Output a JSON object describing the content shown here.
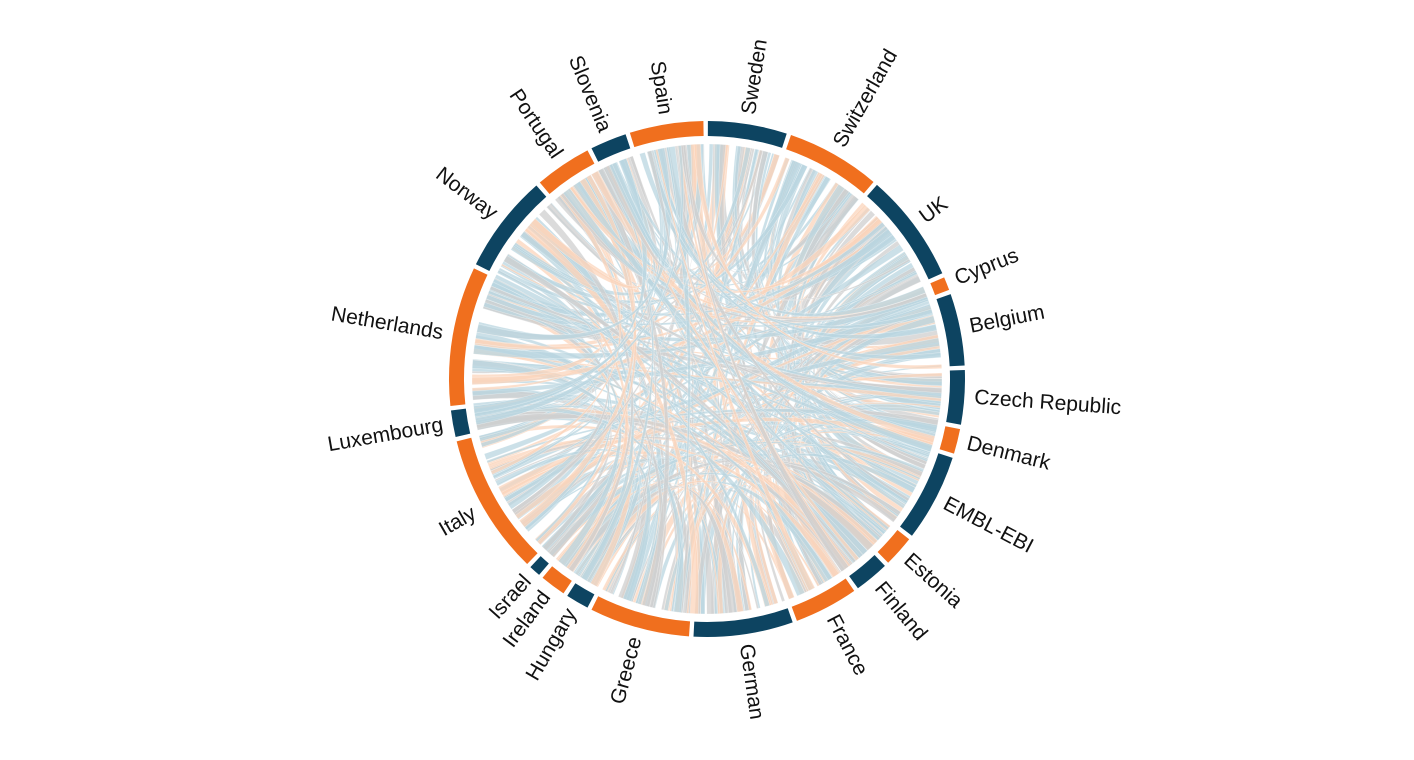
{
  "colors": {
    "orange": "#f06f1e",
    "navy": "#0d4461",
    "ribbon_blue": "#b9d6e0",
    "ribbon_peach": "#fbd4bb",
    "ribbon_grey": "#cfcfcf"
  },
  "chart_data": {
    "type": "chord",
    "segments": [
      {
        "label": "Sweden",
        "start": 0.2,
        "end": 18.0,
        "color": "navy"
      },
      {
        "label": "Switzerland",
        "start": 19.0,
        "end": 40.2,
        "color": "orange"
      },
      {
        "label": "UK",
        "start": 41.2,
        "end": 65.8,
        "color": "navy"
      },
      {
        "label": "Cyprus",
        "start": 66.8,
        "end": 69.8,
        "color": "orange"
      },
      {
        "label": "Belgium",
        "start": 70.8,
        "end": 87.0,
        "color": "navy"
      },
      {
        "label": "Czech Republic",
        "start": 88.0,
        "end": 100.2,
        "color": "navy"
      },
      {
        "label": "Denmark",
        "start": 101.2,
        "end": 106.8,
        "color": "orange"
      },
      {
        "label": "EMBL-EBI",
        "start": 107.8,
        "end": 127.4,
        "color": "navy"
      },
      {
        "label": "Estonia",
        "start": 128.4,
        "end": 135.4,
        "color": "orange"
      },
      {
        "label": "Finland",
        "start": 136.4,
        "end": 144.2,
        "color": "navy"
      },
      {
        "label": "France",
        "start": 145.2,
        "end": 159.6,
        "color": "orange"
      },
      {
        "label": "German",
        "start": 160.6,
        "end": 183.0,
        "color": "navy"
      },
      {
        "label": "Greece",
        "start": 184.0,
        "end": 206.6,
        "color": "orange"
      },
      {
        "label": "Hungary",
        "start": 207.6,
        "end": 212.8,
        "color": "navy"
      },
      {
        "label": "Ireland",
        "start": 213.8,
        "end": 219.6,
        "color": "orange"
      },
      {
        "label": "Israel",
        "start": 220.6,
        "end": 223.2,
        "color": "navy"
      },
      {
        "label": "Italy",
        "start": 224.2,
        "end": 256.0,
        "color": "orange"
      },
      {
        "label": "Luxembourg",
        "start": 257.0,
        "end": 263.0,
        "color": "navy"
      },
      {
        "label": "Netherlands",
        "start": 264.0,
        "end": 295.4,
        "color": "orange"
      },
      {
        "label": "Norway",
        "start": 296.4,
        "end": 318.6,
        "color": "navy"
      },
      {
        "label": "Portugal",
        "start": 319.6,
        "end": 332.4,
        "color": "orange"
      },
      {
        "label": "Slovenia",
        "start": 333.4,
        "end": 341.6,
        "color": "navy"
      },
      {
        "label": "Spain",
        "start": 342.6,
        "end": 359.2,
        "color": "orange"
      }
    ]
  }
}
